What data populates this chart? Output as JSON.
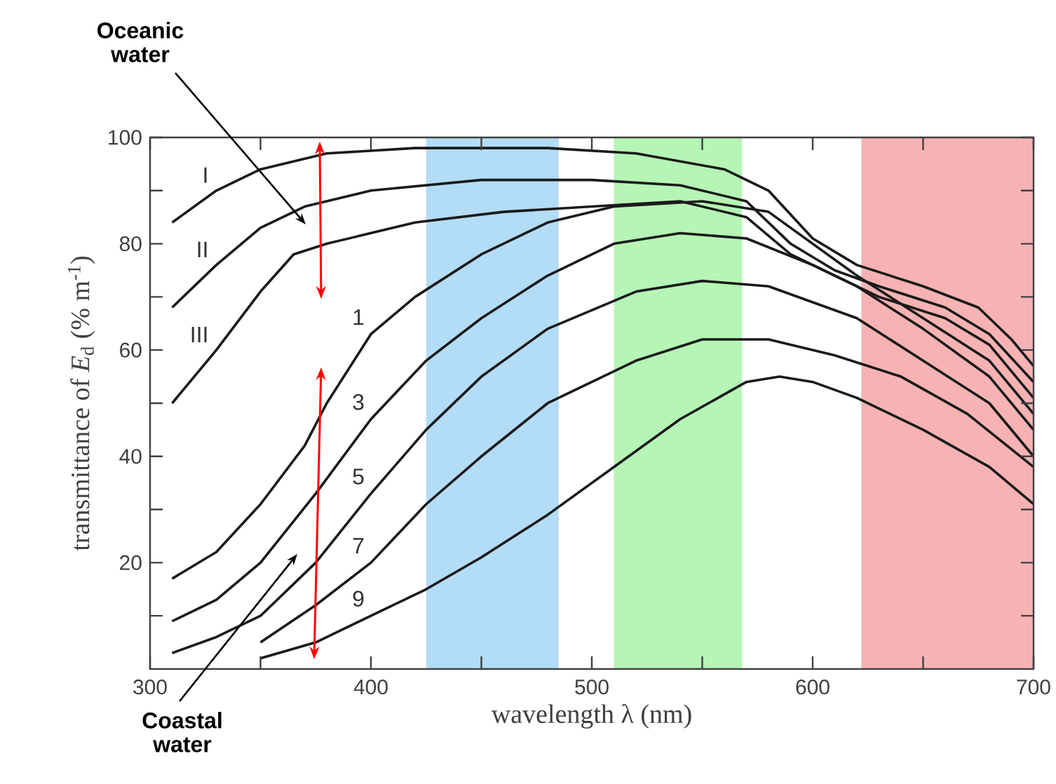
{
  "chart_data": {
    "type": "line",
    "xlabel": "wavelength λ (nm)",
    "ylabel": "transmittance of *E*$_{d}$ (% m$^{-1}$)",
    "xlim": [
      300,
      700
    ],
    "ylim": [
      0,
      100
    ],
    "xticks": [
      300,
      {
        "value": 350,
        "label": null
      },
      400,
      {
        "value": 450,
        "label": null
      },
      500,
      {
        "value": 550,
        "label": null
      },
      600,
      {
        "value": 650,
        "label": null
      },
      700
    ],
    "yticks": [
      {
        "value": 10,
        "label": null
      },
      20,
      {
        "value": 30,
        "label": null
      },
      40,
      {
        "value": 50,
        "label": null
      },
      60,
      {
        "value": 70,
        "label": null
      },
      80,
      {
        "value": 90,
        "label": null
      },
      100
    ],
    "grid": false,
    "marker": "none",
    "line_style": "solid",
    "bands": [
      {
        "axis": "x",
        "from": 425,
        "to": 485,
        "color": "#b3dcf7"
      },
      {
        "axis": "x",
        "from": 510,
        "to": 568,
        "color": "#b5f5b5"
      },
      {
        "axis": "x",
        "from": 622,
        "to": 700,
        "color": "#f7b3b3"
      }
    ],
    "annotations": [
      "Oceanic water",
      "Coastal water"
    ],
    "series": [
      {
        "name": "I",
        "color": "#1a1a1a",
        "x": [
          310,
          330,
          350,
          380,
          420,
          480,
          520,
          560,
          580,
          600,
          620,
          650,
          675,
          690,
          700
        ],
        "values": [
          84,
          90,
          94,
          97,
          98,
          98,
          97,
          94,
          90,
          81,
          76,
          72,
          68,
          62,
          57
        ]
      },
      {
        "name": "II",
        "color": "#1a1a1a",
        "x": [
          310,
          330,
          350,
          370,
          400,
          450,
          500,
          540,
          570,
          590,
          610,
          630,
          660,
          680,
          700
        ],
        "values": [
          68,
          76,
          83,
          87,
          90,
          92,
          92,
          91,
          88,
          80,
          75,
          72,
          68,
          63,
          54
        ]
      },
      {
        "name": "III",
        "color": "#1a1a1a",
        "x": [
          310,
          330,
          350,
          365,
          380,
          420,
          460,
          500,
          540,
          570,
          590,
          610,
          630,
          660,
          680,
          700
        ],
        "values": [
          50,
          60,
          71,
          78,
          80,
          84,
          86,
          87,
          88,
          85,
          78,
          74,
          70,
          66,
          61,
          51
        ]
      },
      {
        "name": "1",
        "color": "#1a1a1a",
        "x": [
          310,
          330,
          350,
          370,
          380,
          400,
          420,
          450,
          480,
          510,
          550,
          580,
          600,
          620,
          650,
          680,
          700
        ],
        "values": [
          17,
          22,
          31,
          42,
          50,
          63,
          70,
          78,
          84,
          87,
          88,
          86,
          80,
          74,
          66,
          58,
          48
        ]
      },
      {
        "name": "3",
        "color": "#1a1a1a",
        "x": [
          310,
          330,
          350,
          375,
          400,
          425,
          450,
          480,
          510,
          540,
          570,
          600,
          620,
          650,
          680,
          700
        ],
        "values": [
          9,
          13,
          20,
          33,
          47,
          58,
          66,
          74,
          80,
          82,
          81,
          76,
          72,
          64,
          55,
          45
        ]
      },
      {
        "name": "5",
        "color": "#1a1a1a",
        "x": [
          310,
          330,
          350,
          375,
          400,
          425,
          450,
          480,
          520,
          550,
          580,
          600,
          620,
          650,
          680,
          700
        ],
        "values": [
          3,
          6,
          10,
          20,
          33,
          45,
          55,
          64,
          71,
          73,
          72,
          69,
          66,
          58,
          50,
          40
        ]
      },
      {
        "name": "7",
        "color": "#1a1a1a",
        "x": [
          350,
          375,
          400,
          425,
          450,
          480,
          520,
          550,
          580,
          610,
          640,
          670,
          700
        ],
        "values": [
          5,
          12,
          20,
          31,
          40,
          50,
          58,
          62,
          62,
          59,
          55,
          48,
          38
        ]
      },
      {
        "name": "9",
        "color": "#1a1a1a",
        "x": [
          350,
          375,
          400,
          425,
          450,
          480,
          510,
          540,
          570,
          585,
          600,
          620,
          650,
          680,
          700
        ],
        "values": [
          2,
          5,
          10,
          15,
          21,
          29,
          38,
          47,
          54,
          55,
          54,
          51,
          45,
          38,
          31
        ]
      }
    ]
  }
}
